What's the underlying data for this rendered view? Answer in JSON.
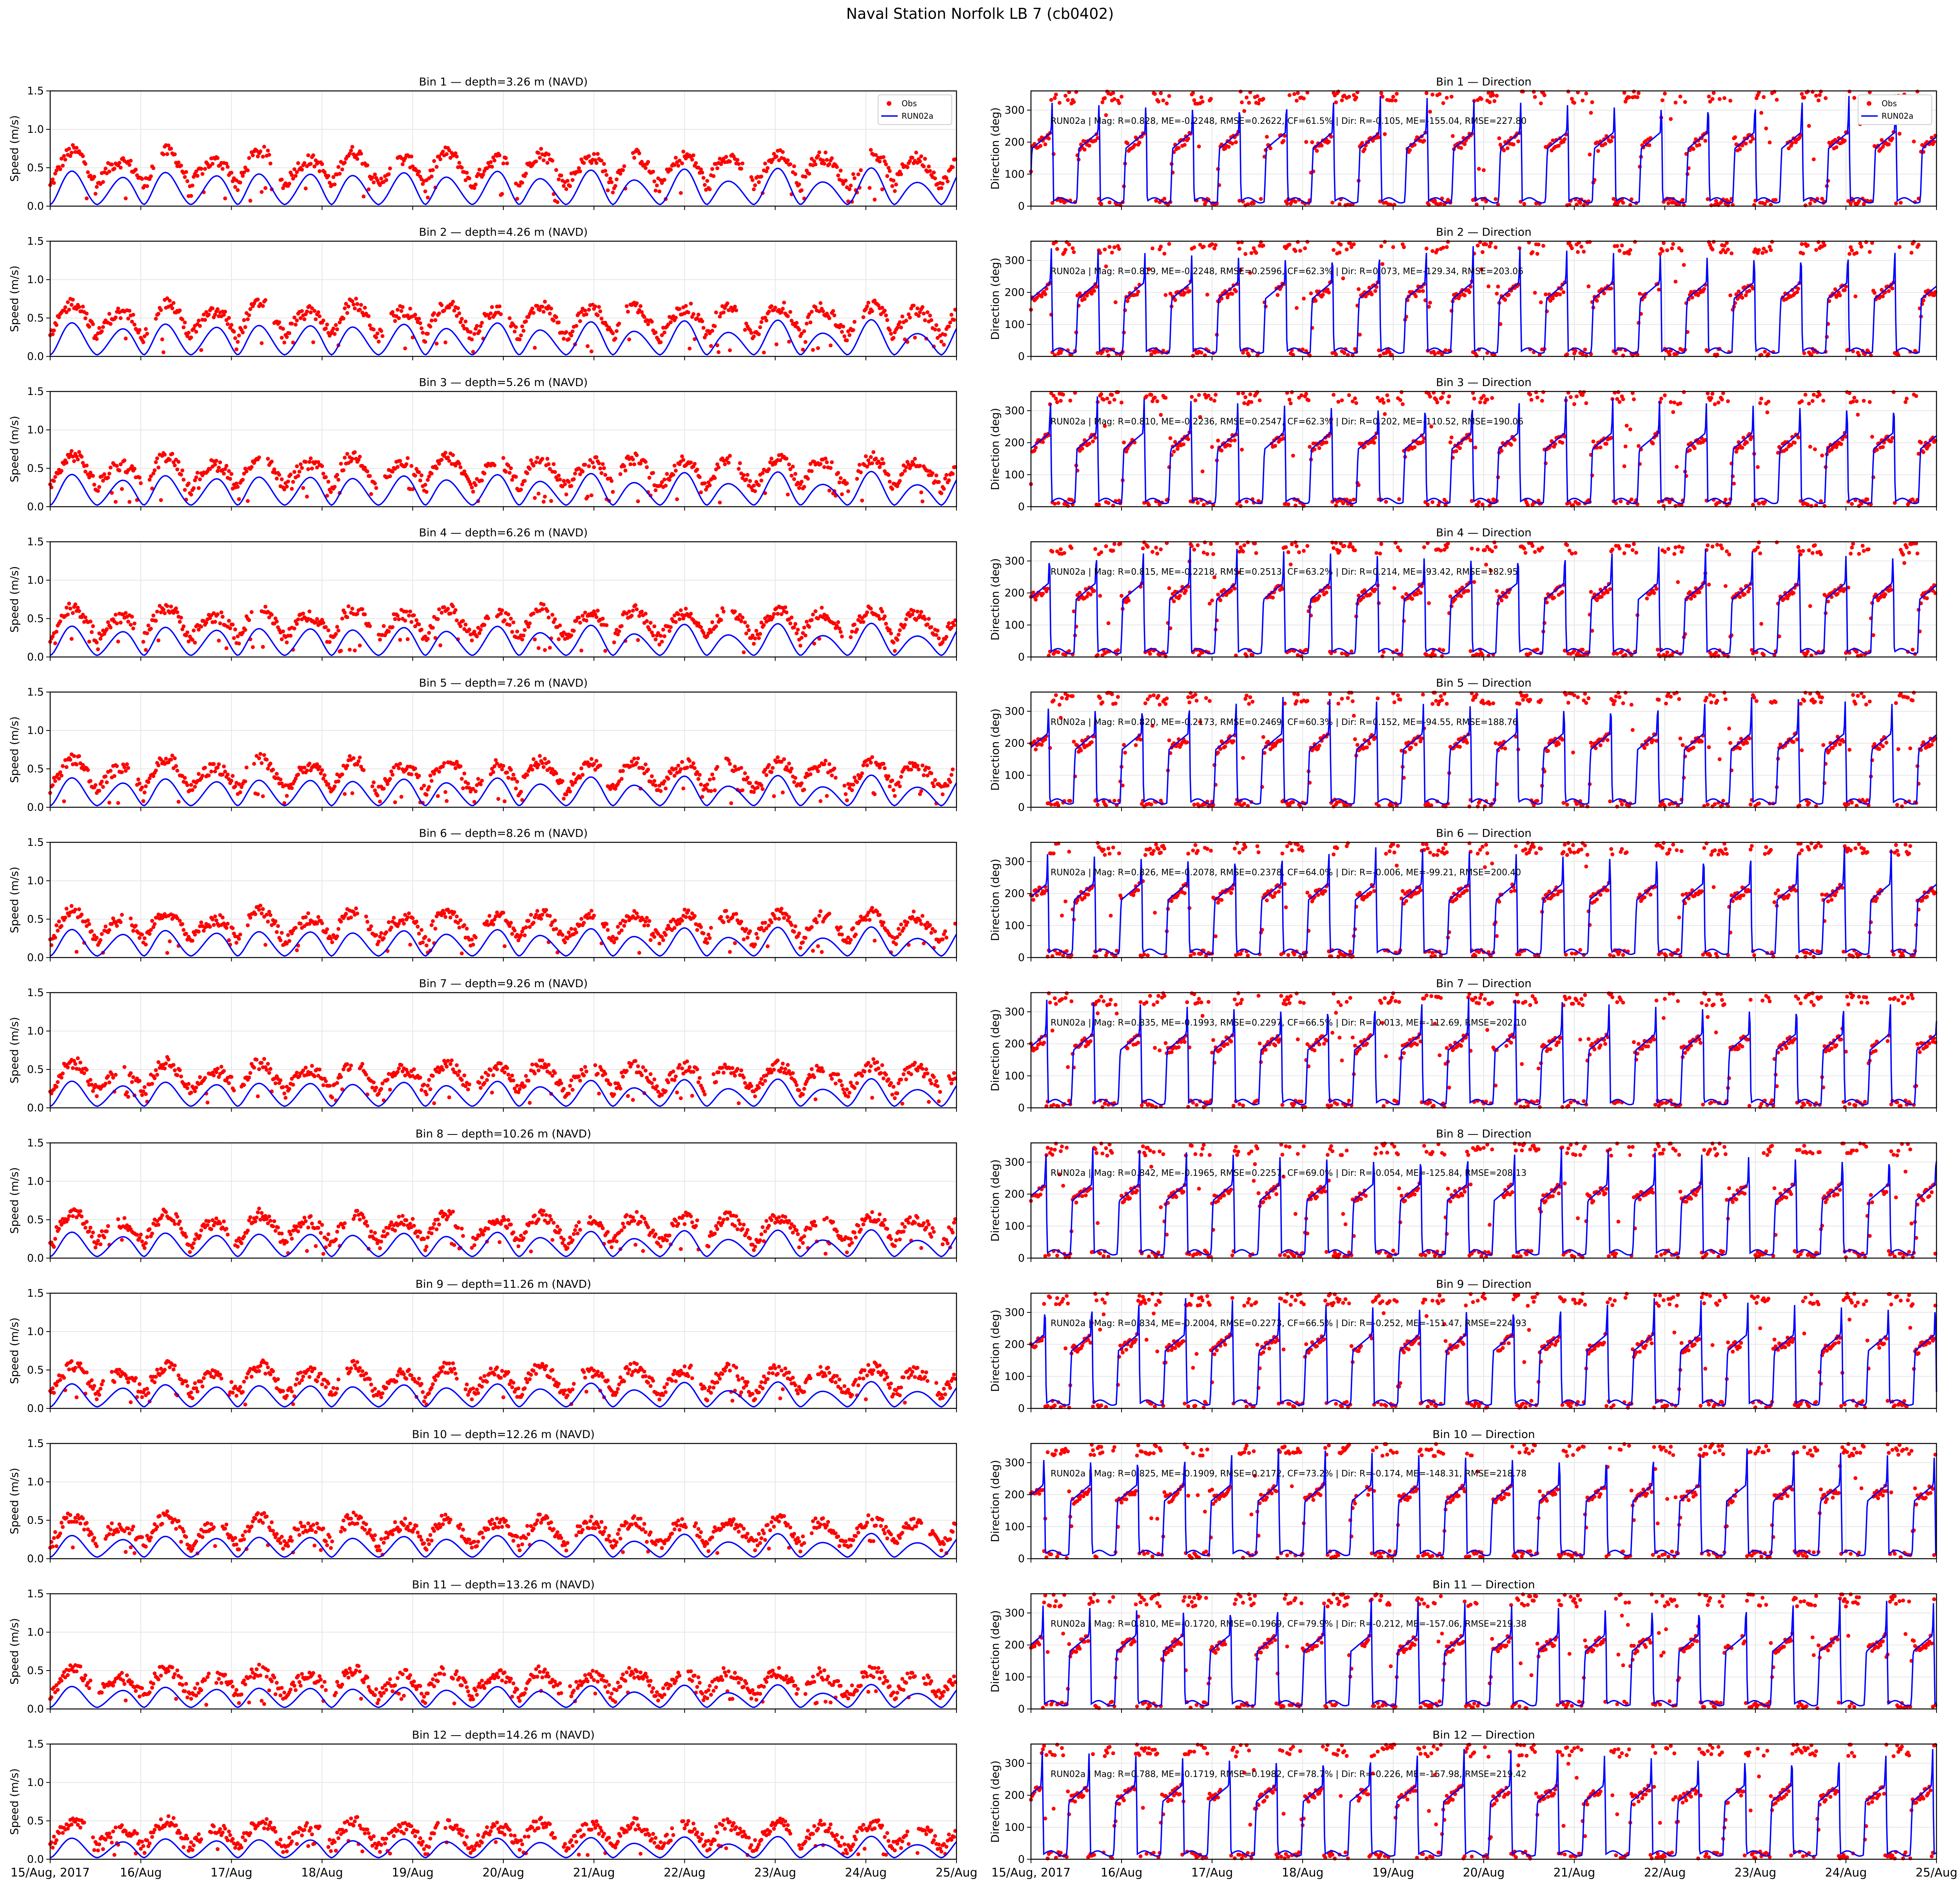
{
  "figure_title": "Naval Station Norfolk LB 7 (cb0402)",
  "colors": {
    "obs": "#ff0000",
    "model": "#0000ff",
    "grid": "#e6e6e6"
  },
  "legend": {
    "obs": "Obs",
    "model": "RUN02a",
    "placement": "upper right"
  },
  "x_tick_labels": [
    "15/Aug, 2017",
    "16/Aug",
    "17/Aug",
    "18/Aug",
    "19/Aug",
    "20/Aug",
    "21/Aug",
    "22/Aug",
    "23/Aug",
    "24/Aug",
    "25/Aug"
  ],
  "speed_ylabel": "Speed (m/s)",
  "dir_ylabel": "Direction (deg)",
  "chart_data": {
    "type": "line",
    "x_range": [
      "2017-08-15 00:00",
      "2017-08-25 00:00"
    ],
    "speed_ylim": [
      0,
      1.5
    ],
    "speed_yticks": [
      0.0,
      0.5,
      1.0,
      1.5
    ],
    "dir_ylim": [
      0,
      360
    ],
    "dir_yticks": [
      0,
      100,
      200,
      300
    ],
    "grid": true,
    "series_names": [
      "Obs",
      "RUN02a"
    ],
    "bins": [
      {
        "bin": 1,
        "speed_title": "Bin 1 — depth=3.26 m (NAVD)",
        "dir_title": "Bin 1 — Direction",
        "stats": "RUN02a | Mag: R=0.828, ME=-0.2248, RMSE=0.2622, CF=61.5% | Dir: R=-0.105, ME=-155.04, RMSE=227.80",
        "obs_peak_mean": 0.72,
        "obs_base": 0.25,
        "model_peak_mean": 0.48
      },
      {
        "bin": 2,
        "speed_title": "Bin 2 — depth=4.26 m (NAVD)",
        "dir_title": "Bin 2 — Direction",
        "stats": "RUN02a | Mag: R=0.819, ME=-0.2248, RMSE=0.2596, CF=62.3% | Dir: R=0.073, ME=-129.34, RMSE=203.06",
        "obs_peak_mean": 0.7,
        "obs_base": 0.24,
        "model_peak_mean": 0.46
      },
      {
        "bin": 3,
        "speed_title": "Bin 3 — depth=5.26 m (NAVD)",
        "dir_title": "Bin 3 — Direction",
        "stats": "RUN02a | Mag: R=0.810, ME=-0.2236, RMSE=0.2547, CF=62.3% | Dir: R=0.202, ME=-110.52, RMSE=190.06",
        "obs_peak_mean": 0.67,
        "obs_base": 0.23,
        "model_peak_mean": 0.44
      },
      {
        "bin": 4,
        "speed_title": "Bin 4 — depth=6.26 m (NAVD)",
        "dir_title": "Bin 4 — Direction",
        "stats": "RUN02a | Mag: R=0.815, ME=-0.2218, RMSE=0.2513, CF=63.2% | Dir: R=0.214, ME=-93.42, RMSE=182.95",
        "obs_peak_mean": 0.65,
        "obs_base": 0.22,
        "model_peak_mean": 0.42
      },
      {
        "bin": 5,
        "speed_title": "Bin 5 — depth=7.26 m (NAVD)",
        "dir_title": "Bin 5 — Direction",
        "stats": "RUN02a | Mag: R=0.820, ME=-0.2173, RMSE=0.2469, CF=60.3% | Dir: R=0.152, ME=-94.55, RMSE=188.76",
        "obs_peak_mean": 0.63,
        "obs_base": 0.21,
        "model_peak_mean": 0.4
      },
      {
        "bin": 6,
        "speed_title": "Bin 6 — depth=8.26 m (NAVD)",
        "dir_title": "Bin 6 — Direction",
        "stats": "RUN02a | Mag: R=0.826, ME=-0.2078, RMSE=0.2378, CF=64.0% | Dir: R=-0.006, ME=-99.21, RMSE=200.40",
        "obs_peak_mean": 0.61,
        "obs_base": 0.2,
        "model_peak_mean": 0.38
      },
      {
        "bin": 7,
        "speed_title": "Bin 7 — depth=9.26 m (NAVD)",
        "dir_title": "Bin 7 — Direction",
        "stats": "RUN02a | Mag: R=0.835, ME=-0.1993, RMSE=0.2297, CF=66.5% | Dir: R=-0.013, ME=-112.69, RMSE=202.10",
        "obs_peak_mean": 0.59,
        "obs_base": 0.19,
        "model_peak_mean": 0.36
      },
      {
        "bin": 8,
        "speed_title": "Bin 8 — depth=10.26 m (NAVD)",
        "dir_title": "Bin 8 — Direction",
        "stats": "RUN02a | Mag: R=0.842, ME=-0.1965, RMSE=0.2257, CF=69.0% | Dir: R=-0.054, ME=-125.84, RMSE=208.13",
        "obs_peak_mean": 0.58,
        "obs_base": 0.18,
        "model_peak_mean": 0.35
      },
      {
        "bin": 9,
        "speed_title": "Bin 9 — depth=11.26 m (NAVD)",
        "dir_title": "Bin 9 — Direction",
        "stats": "RUN02a | Mag: R=0.834, ME=-0.2004, RMSE=0.2273, CF=66.5% | Dir: R=-0.252, ME=-151.47, RMSE=224.93",
        "obs_peak_mean": 0.56,
        "obs_base": 0.17,
        "model_peak_mean": 0.33
      },
      {
        "bin": 10,
        "speed_title": "Bin 10 — depth=12.26 m (NAVD)",
        "dir_title": "Bin 10 — Direction",
        "stats": "RUN02a | Mag: R=0.825, ME=-0.1909, RMSE=0.2172, CF=73.2% | Dir: R=-0.174, ME=-148.31, RMSE=218.78",
        "obs_peak_mean": 0.54,
        "obs_base": 0.16,
        "model_peak_mean": 0.31
      },
      {
        "bin": 11,
        "speed_title": "Bin 11 — depth=13.26 m (NAVD)",
        "dir_title": "Bin 11 — Direction",
        "stats": "RUN02a | Mag: R=0.810, ME=-0.1720, RMSE=0.1969, CF=79.9% | Dir: R=-0.212, ME=-157.06, RMSE=219.38",
        "obs_peak_mean": 0.52,
        "obs_base": 0.15,
        "model_peak_mean": 0.3
      },
      {
        "bin": 12,
        "speed_title": "Bin 12 — depth=14.26 m (NAVD)",
        "dir_title": "Bin 12 — Direction",
        "stats": "RUN02a | Mag: R=0.788, ME=-0.1719, RMSE=0.1982, CF=78.7% | Dir: R=-0.226, ME=-157.98, RMSE=219.42",
        "obs_peak_mean": 0.5,
        "obs_base": 0.14,
        "model_peak_mean": 0.28
      }
    ]
  }
}
